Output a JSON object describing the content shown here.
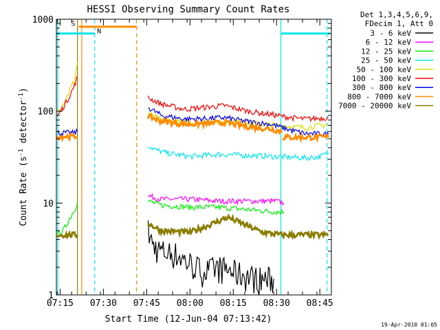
{
  "chart_data": {
    "type": "line",
    "title": "HESSI Observing Summary Count Rates",
    "xlabel": "Start Time (12-Jun-04 07:13:42)",
    "ylabel": "Count Rate (s⁻¹ detector⁻¹)",
    "ylabel_parts": {
      "base": "Count Rate (s",
      "sup1": "-1",
      "mid": " detector",
      "sup2": "-1",
      "end": ")"
    },
    "yscale": "log",
    "ylim": [
      1,
      1000
    ],
    "yticks": [
      {
        "v": 1,
        "label": "1"
      },
      {
        "v": 10,
        "label": "10"
      },
      {
        "v": 100,
        "label": "100"
      },
      {
        "v": 1000,
        "label": "1000"
      }
    ],
    "xlim_min": [
      433.7,
      529
    ],
    "xticks": [
      {
        "v": 435,
        "label": "07:15"
      },
      {
        "v": 450,
        "label": "07:30"
      },
      {
        "v": 465,
        "label": "07:45"
      },
      {
        "v": 480,
        "label": "08:00"
      },
      {
        "v": 495,
        "label": "08:15"
      },
      {
        "v": 510,
        "label": "08:30"
      },
      {
        "v": 525,
        "label": "08:45"
      }
    ],
    "footer": "19-Apr-2010 01:05",
    "legend_header": [
      "Det 1,3,4,5,6,9,",
      "FDecim 1, Att 0"
    ],
    "legend_placement": "right",
    "series": [
      {
        "name": "3 - 6 keV",
        "color": "#000000",
        "noisy": true,
        "segments": [
          [
            [
              465.5,
              5
            ],
            [
              467,
              3.5
            ],
            [
              470,
              3
            ],
            [
              475,
              2.8
            ],
            [
              480,
              2.2
            ],
            [
              485,
              1.8
            ],
            [
              490,
              2.0
            ],
            [
              495,
              1.8
            ],
            [
              500,
              1.6
            ],
            [
              505,
              1.5
            ],
            [
              509,
              1.5
            ]
          ]
        ]
      },
      {
        "name": "6 - 12 keV",
        "color": "#ff00ff",
        "segments": [
          [
            [
              465.5,
              12
            ],
            [
              470,
              11
            ],
            [
              480,
              11
            ],
            [
              490,
              10.5
            ],
            [
              500,
              10.5
            ],
            [
              510,
              10.5
            ],
            [
              512.5,
              10
            ]
          ]
        ]
      },
      {
        "name": "12 - 25 keV",
        "color": "#00ee00",
        "segments": [
          [
            [
              434,
              4.5
            ],
            [
              436,
              5
            ],
            [
              438,
              6.5
            ],
            [
              440,
              8.5
            ],
            [
              441,
              10
            ]
          ],
          [
            [
              465.5,
              10.5
            ],
            [
              470,
              9.5
            ],
            [
              480,
              9
            ],
            [
              490,
              9
            ],
            [
              500,
              8.5
            ],
            [
              510,
              8
            ],
            [
              512.5,
              8
            ]
          ]
        ]
      },
      {
        "name": "25 - 50 keV",
        "color": "#00e5ee",
        "segments": [
          [
            [
              465.5,
              42
            ],
            [
              468,
              38
            ],
            [
              472,
              35
            ],
            [
              480,
              32
            ],
            [
              490,
              34
            ],
            [
              500,
              33
            ],
            [
              510,
              32
            ],
            [
              520,
              31
            ],
            [
              525,
              32
            ],
            [
              528,
              35
            ]
          ]
        ]
      },
      {
        "name": "50 - 100 keV",
        "color": "#dddd00",
        "segments": [
          [
            [
              434,
              100
            ],
            [
              436,
              120
            ],
            [
              438,
              160
            ],
            [
              440,
              220
            ],
            [
              441,
              340
            ]
          ],
          [
            [
              465.5,
              95
            ],
            [
              470,
              80
            ],
            [
              480,
              75
            ],
            [
              490,
              77
            ],
            [
              495,
              78
            ],
            [
              500,
              74
            ],
            [
              510,
              70
            ],
            [
              520,
              66
            ],
            [
              528,
              72
            ]
          ]
        ]
      },
      {
        "name": "100 - 300 keV",
        "color": "#ee0000",
        "segments": [
          [
            [
              434,
              88
            ],
            [
              436,
              110
            ],
            [
              438,
              140
            ],
            [
              440,
              190
            ],
            [
              441,
              240
            ]
          ],
          [
            [
              465.5,
              140
            ],
            [
              470,
              120
            ],
            [
              478,
              105
            ],
            [
              485,
              110
            ],
            [
              492,
              115
            ],
            [
              500,
              100
            ],
            [
              508,
              92
            ],
            [
              515,
              85
            ],
            [
              520,
              82
            ],
            [
              528,
              85
            ]
          ]
        ]
      },
      {
        "name": "300 - 800 keV",
        "color": "#0000ee",
        "segments": [
          [
            [
              434,
              58
            ],
            [
              438,
              58
            ],
            [
              440,
              58
            ],
            [
              441,
              60
            ]
          ],
          [
            [
              465.5,
              110
            ],
            [
              470,
              90
            ],
            [
              478,
              82
            ],
            [
              485,
              83
            ],
            [
              492,
              85
            ],
            [
              500,
              77
            ],
            [
              508,
              72
            ],
            [
              515,
              62
            ],
            [
              520,
              57
            ],
            [
              528,
              56
            ]
          ]
        ]
      },
      {
        "name": "800 - 7000 keV",
        "color": "#ff8c00",
        "thick": true,
        "segments": [
          [
            [
              434,
              53
            ],
            [
              441,
              53
            ]
          ],
          [
            [
              465.5,
              88
            ],
            [
              470,
              78
            ],
            [
              478,
              72
            ],
            [
              485,
              73
            ],
            [
              492,
              75
            ],
            [
              500,
              68
            ],
            [
              508,
              64
            ],
            [
              512,
              60
            ]
          ],
          [
            [
              512,
              52
            ],
            [
              528,
              52
            ]
          ]
        ]
      },
      {
        "name": "7000 - 20000 keV",
        "color": "#8b7d00",
        "thick": true,
        "segments": [
          [
            [
              434,
              4.5
            ],
            [
              441,
              4.5
            ]
          ],
          [
            [
              465.5,
              6
            ],
            [
              470,
              5
            ],
            [
              480,
              4.8
            ],
            [
              488,
              6
            ],
            [
              493,
              7
            ],
            [
              498,
              6
            ],
            [
              505,
              4.8
            ],
            [
              512,
              4.5
            ],
            [
              520,
              4.5
            ],
            [
              528,
              4.5
            ]
          ]
        ]
      }
    ],
    "annotations": {
      "vlines": [
        {
          "x": 434.2,
          "color": "#00e5ee",
          "style": "solid"
        },
        {
          "x": 441.0,
          "color": "#8b7d00",
          "style": "solid"
        },
        {
          "x": 442.5,
          "color": "#ff8c00",
          "style": "solid"
        },
        {
          "x": 447.0,
          "color": "#00e5ee",
          "style": "dashed"
        },
        {
          "x": 461.5,
          "color": "#ff8c00",
          "style": "dashed"
        },
        {
          "x": 511.5,
          "color": "#00e5ee",
          "style": "solid"
        },
        {
          "x": 527.5,
          "color": "#00e5ee",
          "style": "dashed"
        }
      ],
      "hbars": [
        {
          "x0": 433.8,
          "x1": 447.0,
          "y": 700,
          "color": "#00e5ee"
        },
        {
          "x0": 441.5,
          "x1": 461.5,
          "y": 830,
          "color": "#ff8c00"
        },
        {
          "x0": 511.5,
          "x1": 528.5,
          "y": 700,
          "color": "#00e5ee"
        }
      ],
      "marks": [
        {
          "text": "S",
          "x": 439.5,
          "y": 850,
          "color": "#ff8c00"
        },
        {
          "text": "N",
          "x": 448.5,
          "y": 700,
          "color": "#00e5ee"
        }
      ]
    }
  }
}
